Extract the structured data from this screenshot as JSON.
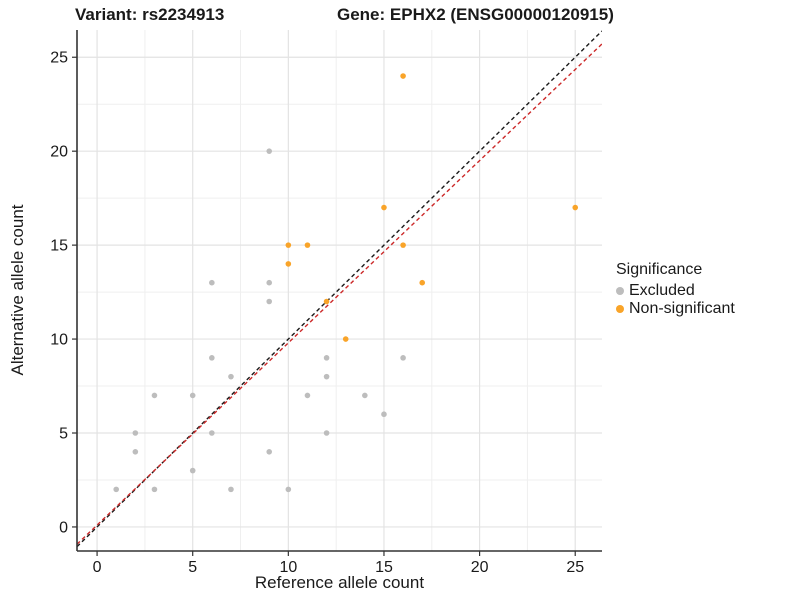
{
  "titles": {
    "left": "Variant: rs2234913",
    "right": "Gene: EPHX2 (ENSG00000120915)"
  },
  "legend": {
    "title": "Significance",
    "items": [
      {
        "label": "Excluded",
        "color": "#BDBDBD"
      },
      {
        "label": "Non-significant",
        "color": "#F9A429"
      }
    ]
  },
  "chart_data": {
    "type": "scatter",
    "title_left": "Variant: rs2234913",
    "title_right": "Gene: EPHX2 (ENSG00000120915)",
    "xlabel": "Reference allele count",
    "ylabel": "Alternative allele count",
    "xlim": [
      -1.05,
      26.4
    ],
    "ylim": [
      -1.28,
      26.45
    ],
    "xticks": [
      0,
      5,
      10,
      15,
      20,
      25
    ],
    "yticks": [
      0,
      5,
      10,
      15,
      20,
      25
    ],
    "grid": "major+minor",
    "legend_position": "right",
    "series": [
      {
        "name": "Excluded",
        "color": "#BDBDBD",
        "points": [
          [
            1,
            2
          ],
          [
            2,
            4
          ],
          [
            2,
            5
          ],
          [
            3,
            2
          ],
          [
            3,
            7
          ],
          [
            5,
            3
          ],
          [
            5,
            7
          ],
          [
            6,
            5
          ],
          [
            6,
            9
          ],
          [
            6,
            13
          ],
          [
            7,
            2
          ],
          [
            7,
            8
          ],
          [
            9,
            4
          ],
          [
            9,
            12
          ],
          [
            9,
            13
          ],
          [
            9,
            20
          ],
          [
            10,
            2
          ],
          [
            11,
            7
          ],
          [
            12,
            5
          ],
          [
            12,
            8
          ],
          [
            12,
            9
          ],
          [
            14,
            7
          ],
          [
            15,
            6
          ],
          [
            16,
            9
          ]
        ]
      },
      {
        "name": "Non-significant",
        "color": "#F9A429",
        "points": [
          [
            10,
            14
          ],
          [
            10,
            15
          ],
          [
            11,
            15
          ],
          [
            12,
            12
          ],
          [
            13,
            10
          ],
          [
            15,
            17
          ],
          [
            16,
            15
          ],
          [
            16,
            24
          ],
          [
            17,
            13
          ],
          [
            25,
            17
          ]
        ]
      }
    ],
    "lines": [
      {
        "name": "identity-line",
        "color": "#1A1A1A",
        "slope": 1.0,
        "intercept": 0.0,
        "dash": "4,3"
      },
      {
        "name": "fit-line",
        "color": "#CC2929",
        "slope": 0.97,
        "intercept": 0.1,
        "dash": "4,3"
      }
    ]
  }
}
